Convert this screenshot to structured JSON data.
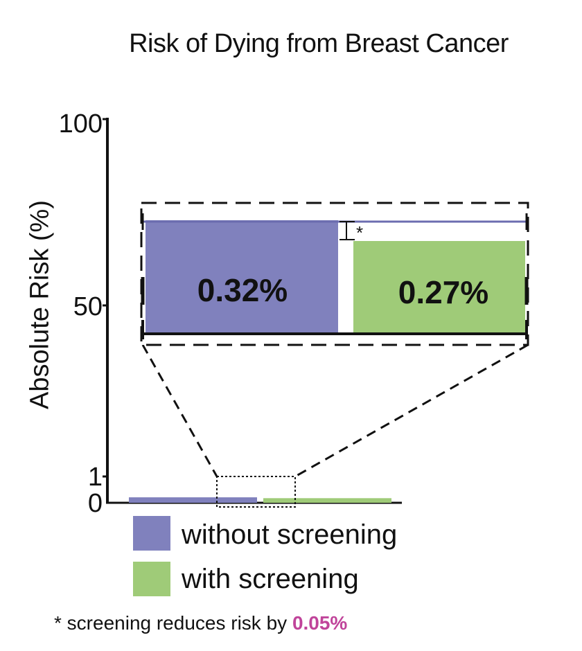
{
  "chart_data": {
    "type": "bar",
    "title": "Risk of Dying from Breast Cancer",
    "ylabel": "Absolute Risk (%)",
    "xlabel": "",
    "ylim": [
      0,
      100
    ],
    "yticks": [
      "100",
      "50",
      "1",
      "0"
    ],
    "categories": [
      "without screening",
      "with screening"
    ],
    "values": [
      0.32,
      0.27
    ],
    "value_labels": [
      "0.32%",
      "0.27%"
    ],
    "colors": [
      "#8081bd",
      "#9fcb78"
    ],
    "inset": {
      "description_zoom_range": [
        0,
        1
      ],
      "asterisk": "*"
    },
    "legend": [
      {
        "label": "without screening",
        "color": "#8081bd"
      },
      {
        "label": "with screening",
        "color": "#9fcb78"
      }
    ],
    "footnote": {
      "prefix": "* screening reduces risk by ",
      "highlight": "0.05%",
      "highlight_color": "#c0449a"
    },
    "grid": false
  }
}
